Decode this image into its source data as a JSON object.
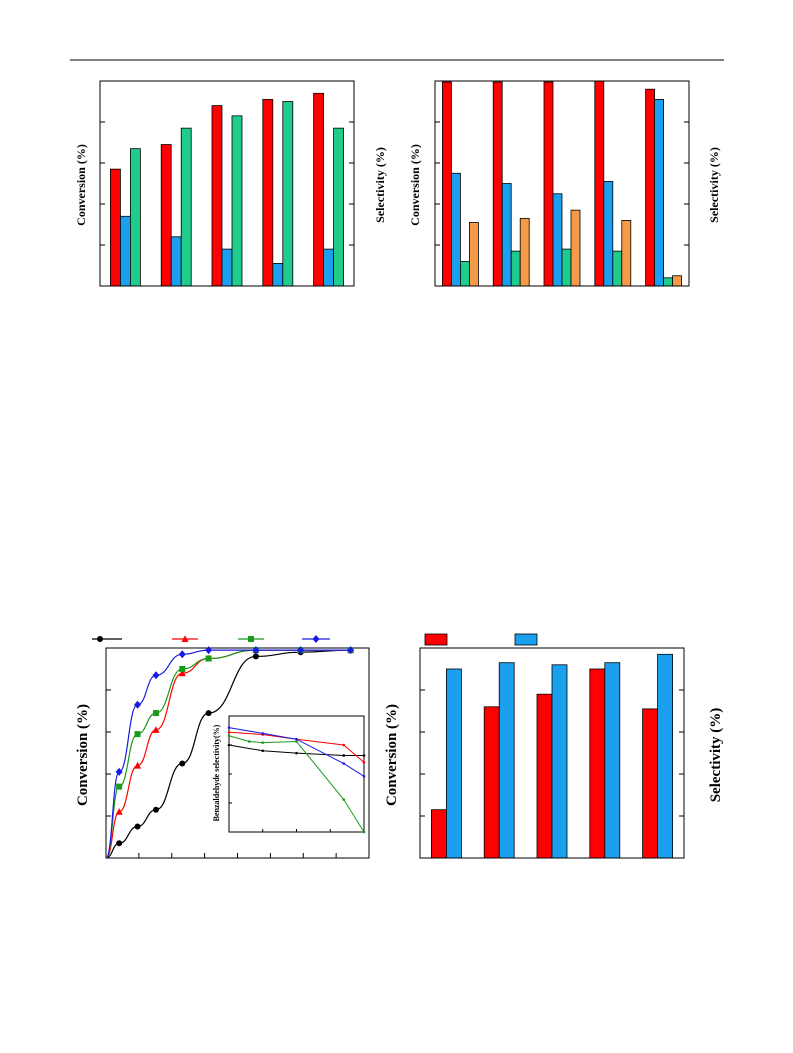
{
  "colors": {
    "red": "#ff0000",
    "blue": "#1aa0ee",
    "green": "#1fcc8c",
    "orange": "#f59a48",
    "black": "#000000",
    "curve_green": "#1a9a1a",
    "curve_blue": "#1a1ae6"
  },
  "charts": [
    {
      "type": "bar",
      "ylabel_left": "Conversion (%)",
      "ylabel_right": "Selectivity (%)",
      "ylim": [
        0,
        100
      ],
      "groups": 5,
      "series": [
        {
          "color": "red",
          "values": [
            57,
            69,
            88,
            91,
            94
          ]
        },
        {
          "color": "blue",
          "values": [
            34,
            24,
            18,
            11,
            18
          ]
        },
        {
          "color": "green",
          "values": [
            67,
            77,
            83,
            90,
            77
          ]
        }
      ]
    },
    {
      "type": "bar",
      "ylabel_left": "Conversion (%)",
      "ylabel_right": "Selectivity (%)",
      "ylim": [
        0,
        100
      ],
      "groups": 5,
      "series": [
        {
          "color": "red",
          "values": [
            99.5,
            99.5,
            99.5,
            100,
            96
          ]
        },
        {
          "color": "blue",
          "values": [
            55,
            50,
            45,
            51,
            91
          ]
        },
        {
          "color": "green",
          "values": [
            12,
            17,
            18,
            17,
            4
          ]
        },
        {
          "color": "orange",
          "values": [
            31,
            33,
            37,
            32,
            5
          ]
        }
      ]
    },
    {
      "type": "line",
      "ylabel_left": "Conversion (%)",
      "ylim": [
        0,
        100
      ],
      "xlim": [
        0,
        100
      ],
      "legend_markers": [
        "circle",
        "triangle",
        "square",
        "diamond"
      ],
      "series": [
        {
          "color": "black",
          "marker": "circle",
          "x": [
            5,
            12,
            19,
            29,
            39,
            57,
            74,
            93
          ],
          "y": [
            7,
            15,
            23,
            45,
            69,
            96,
            98,
            99
          ]
        },
        {
          "color": "red",
          "marker": "triangle",
          "x": [
            5,
            12,
            19,
            29,
            39,
            57,
            74,
            93
          ],
          "y": [
            22,
            44,
            61,
            88,
            95,
            99,
            99,
            99
          ]
        },
        {
          "color": "curve_green",
          "marker": "square",
          "x": [
            5,
            12,
            19,
            29,
            39,
            57,
            74,
            93
          ],
          "y": [
            34,
            59,
            69,
            90,
            95,
            99,
            99,
            99
          ]
        },
        {
          "color": "curve_blue",
          "marker": "diamond",
          "x": [
            5,
            12,
            19,
            29,
            39,
            57,
            74,
            93
          ],
          "y": [
            41,
            73,
            87,
            97,
            99,
            99,
            99,
            99
          ]
        }
      ],
      "inset": {
        "ylabel": "Benzaldehyde selectivity(%)",
        "ylim": [
          0,
          100
        ],
        "xlim": [
          0,
          100
        ],
        "series": [
          {
            "color": "black",
            "x": [
              0,
              25,
              50,
              85,
              100
            ],
            "y": [
              75,
              70,
              68,
              66,
              66
            ]
          },
          {
            "color": "red",
            "x": [
              0,
              25,
              50,
              85,
              100
            ],
            "y": [
              86,
              84,
              80,
              75,
              60
            ]
          },
          {
            "color": "curve_green",
            "x": [
              0,
              15,
              25,
              50,
              85,
              100
            ],
            "y": [
              83,
              78,
              77,
              78,
              28,
              0
            ]
          },
          {
            "color": "curve_blue",
            "x": [
              0,
              25,
              50,
              85,
              100
            ],
            "y": [
              90,
              85,
              80,
              59,
              48
            ]
          }
        ]
      }
    },
    {
      "type": "bar",
      "ylabel_left": "Conversion (%)",
      "ylabel_right": "Selectivity (%)",
      "ylim": [
        0,
        100
      ],
      "groups": 5,
      "legend_swatches": [
        "red",
        "blue"
      ],
      "series": [
        {
          "color": "red",
          "values": [
            23,
            72,
            78,
            90,
            71
          ]
        },
        {
          "color": "blue",
          "values": [
            90,
            93,
            92,
            93,
            97
          ]
        }
      ]
    }
  ]
}
